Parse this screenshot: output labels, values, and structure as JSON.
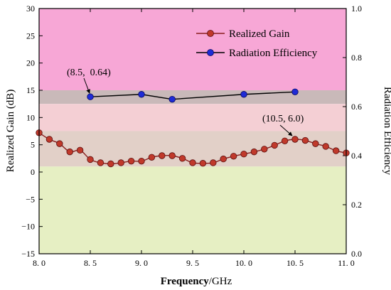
{
  "chart_data": {
    "type": "line",
    "xlabel_bold": "Frequency",
    "xlabel_unit": "/GHz",
    "ylabel_left": "Realized Gain (dB)",
    "ylabel_right": "Radiation Efficiency",
    "xlim": [
      8.0,
      11.0
    ],
    "ylim_left": [
      -15,
      30
    ],
    "ylim_right": [
      0.0,
      1.0
    ],
    "x_ticks": [
      {
        "v": 8.0,
        "label": "8. 0"
      },
      {
        "v": 8.5,
        "label": "8. 5"
      },
      {
        "v": 9.0,
        "label": "9. 0"
      },
      {
        "v": 9.5,
        "label": "9. 5"
      },
      {
        "v": 10.0,
        "label": "10. 0"
      },
      {
        "v": 10.5,
        "label": "10. 5"
      },
      {
        "v": 11.0,
        "label": "11. 0"
      }
    ],
    "y_left_ticks": [
      {
        "v": -15,
        "label": "−15"
      },
      {
        "v": -10,
        "label": "−10"
      },
      {
        "v": -5,
        "label": "−5"
      },
      {
        "v": 0,
        "label": "0"
      },
      {
        "v": 5,
        "label": "5"
      },
      {
        "v": 10,
        "label": "10"
      },
      {
        "v": 15,
        "label": "15"
      },
      {
        "v": 20,
        "label": "20"
      },
      {
        "v": 25,
        "label": "25"
      },
      {
        "v": 30,
        "label": "30"
      }
    ],
    "y_right_ticks": [
      {
        "v": 0.0,
        "label": "0.0"
      },
      {
        "v": 0.2,
        "label": "0.2"
      },
      {
        "v": 0.4,
        "label": "0.4"
      },
      {
        "v": 0.6,
        "label": "0.6"
      },
      {
        "v": 0.8,
        "label": "0.8"
      },
      {
        "v": 1.0,
        "label": "1.0"
      }
    ],
    "background_bands": [
      {
        "from": 15,
        "to": 30,
        "color": "#f7a7d6"
      },
      {
        "from": 12.5,
        "to": 15,
        "color": "#c9b9b9"
      },
      {
        "from": 7.5,
        "to": 12.5,
        "color": "#f4cfd4"
      },
      {
        "from": 1,
        "to": 7.5,
        "color": "#e2d0c8"
      },
      {
        "from": -15,
        "to": 1,
        "color": "#e6efc3"
      }
    ],
    "series": [
      {
        "name": "Realized Gain",
        "axis": "left",
        "color": "#c0392b",
        "line_color": "#8a1f1f",
        "x": [
          8.0,
          8.1,
          8.2,
          8.3,
          8.4,
          8.5,
          8.6,
          8.7,
          8.8,
          8.9,
          9.0,
          9.1,
          9.2,
          9.3,
          9.4,
          9.5,
          9.6,
          9.7,
          9.8,
          9.9,
          10.0,
          10.1,
          10.2,
          10.3,
          10.4,
          10.5,
          10.6,
          10.7,
          10.8,
          10.9,
          11.0
        ],
        "values": [
          7.2,
          6.0,
          5.2,
          3.7,
          4.0,
          2.3,
          1.7,
          1.5,
          1.7,
          2.0,
          2.0,
          2.7,
          3.0,
          3.0,
          2.5,
          1.7,
          1.6,
          1.7,
          2.4,
          2.9,
          3.3,
          3.7,
          4.2,
          4.9,
          5.7,
          6.0,
          5.8,
          5.2,
          4.7,
          3.9,
          3.5
        ]
      },
      {
        "name": "Radiation Efficiency",
        "axis": "right",
        "color": "#1f2bd6",
        "line_color": "#000000",
        "x": [
          8.5,
          9.0,
          9.3,
          10.0,
          10.5
        ],
        "values": [
          0.64,
          0.65,
          0.63,
          0.65,
          0.66
        ]
      }
    ],
    "annotations": [
      {
        "text": "(8.5,  0.64)",
        "x": 8.5,
        "y_right": 0.64
      },
      {
        "text": "(10.5, 6.0)",
        "x": 10.5,
        "y_left": 6.0
      }
    ],
    "legend_position": "top-right"
  }
}
